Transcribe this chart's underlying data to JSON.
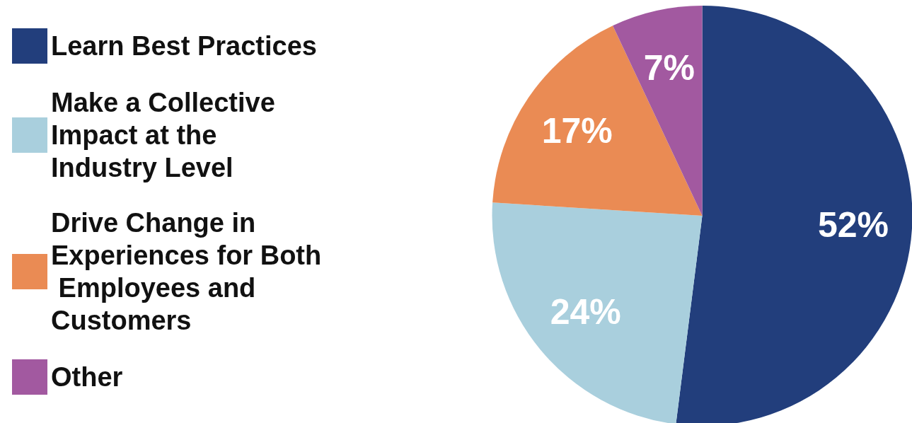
{
  "chart_data": {
    "type": "pie",
    "categories": [
      "Learn Best Practices",
      "Make a Collective Impact at the Industry Level",
      "Drive Change in Experiences for Both Employees and Customers",
      "Other"
    ],
    "values": [
      52,
      24,
      17,
      7
    ],
    "value_labels": [
      "52%",
      "24%",
      "17%",
      "7%"
    ],
    "colors": [
      "#223e7c",
      "#a9cfdd",
      "#ea8b54",
      "#a259a0"
    ],
    "legend": "left"
  }
}
